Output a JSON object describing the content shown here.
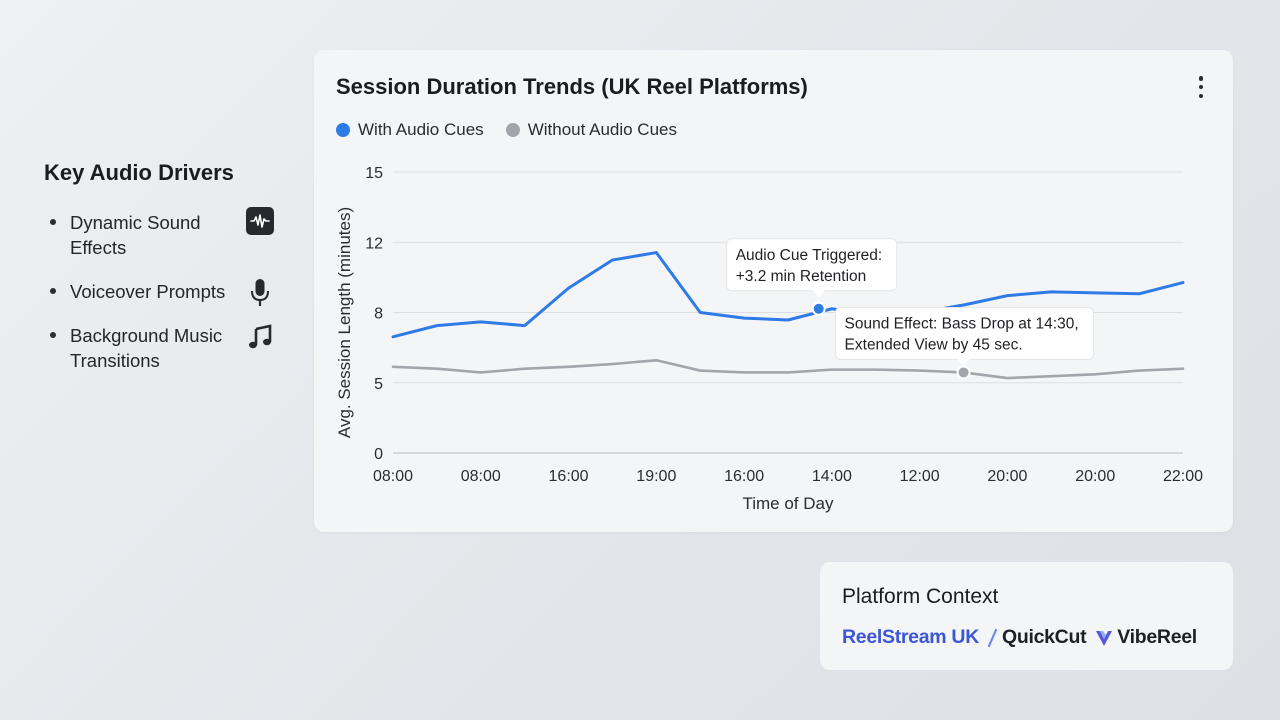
{
  "drivers": {
    "title": "Key Audio Drivers",
    "items": [
      {
        "label": "Dynamic Sound Effects",
        "icon": "waveform-icon"
      },
      {
        "label": "Voiceover Prompts",
        "icon": "microphone-icon"
      },
      {
        "label": "Background Music Transitions",
        "icon": "music-note-icon"
      }
    ]
  },
  "platform": {
    "title": "Platform Context",
    "logos": [
      "ReelStream UK",
      "QuickCut",
      "VibeReel"
    ]
  },
  "colors": {
    "with_audio": "#2f7be6",
    "without_audio": "#a3a5aa",
    "reelstream": "#3b56d8"
  },
  "chart_data": {
    "type": "line",
    "title": "Session Duration Trends (UK Reel Platforms)",
    "xlabel": "Time of Day",
    "ylabel": "Avg. Session Length (minutes)",
    "x_ticks": [
      "08:00",
      "08:00",
      "16:00",
      "19:00",
      "16:00",
      "14:00",
      "12:00",
      "20:00",
      "20:00",
      "22:00"
    ],
    "y_ticks": [
      0,
      5,
      8,
      12,
      15
    ],
    "ylim": [
      0,
      15
    ],
    "grid": true,
    "legend_position": "top-left",
    "series": [
      {
        "name": "With Audio Cues",
        "x": [
          0,
          0.5,
          1,
          1.5,
          2,
          2.5,
          3,
          3.5,
          4,
          4.5,
          5,
          5.5,
          6,
          6.5,
          7,
          7.5,
          8,
          8.5,
          9
        ],
        "values": [
          6.2,
          6.8,
          7.0,
          6.8,
          8.8,
          10.3,
          10.7,
          7.5,
          7.2,
          7.1,
          7.7,
          7.3,
          7.5,
          7.9,
          8.4,
          8.6,
          8.55,
          8.5,
          9.1
        ]
      },
      {
        "name": "Without Audio Cues",
        "x": [
          0,
          0.5,
          1,
          1.5,
          2,
          2.5,
          3,
          3.5,
          4,
          4.5,
          5,
          5.5,
          6,
          6.5,
          7,
          7.5,
          8,
          8.5,
          9
        ],
        "values": [
          4.6,
          4.5,
          4.3,
          4.5,
          4.6,
          4.75,
          4.95,
          4.4,
          4.3,
          4.3,
          4.45,
          4.45,
          4.4,
          4.3,
          4.0,
          4.1,
          4.2,
          4.4,
          4.5
        ]
      }
    ],
    "annotations": [
      {
        "line1": "Audio Cue Triggered:",
        "line2": "+3.2 min Retention",
        "series": 0,
        "x": 4.85,
        "y": 7.7
      },
      {
        "line1": "Sound Effect: Bass Drop at 14:30,",
        "line2": "Extended View by 45 sec.",
        "series": 1,
        "x": 6.5,
        "y": 4.3
      }
    ]
  }
}
